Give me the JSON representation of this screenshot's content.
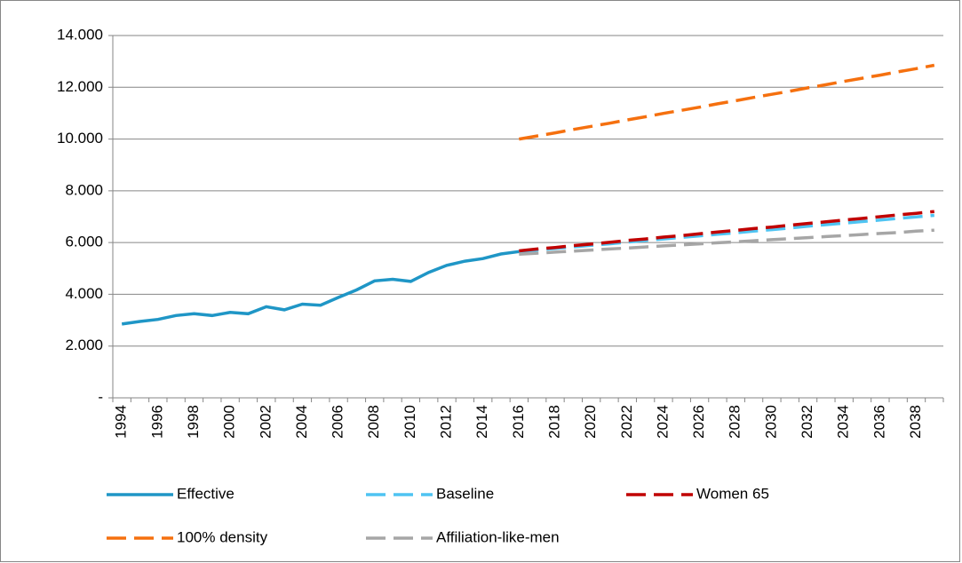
{
  "chart_data": {
    "type": "line",
    "categories": [
      "1994",
      null,
      "1996",
      null,
      "1998",
      null,
      "2000",
      null,
      "2002",
      null,
      "2004",
      null,
      "2006",
      null,
      "2008",
      null,
      "2010",
      null,
      "2012",
      null,
      "2014",
      null,
      "2016",
      null,
      "2018",
      null,
      "2020",
      null,
      "2022",
      null,
      "2024",
      null,
      "2026",
      null,
      "2028",
      null,
      "2030",
      null,
      "2032",
      null,
      "2034",
      null,
      "2036",
      null,
      "2038",
      null
    ],
    "series": [
      {
        "name": "Effective",
        "color": "#1f96c6",
        "dashed": false,
        "values": [
          2850,
          2950,
          3030,
          3180,
          3250,
          3180,
          3300,
          3250,
          3520,
          3400,
          3620,
          3580,
          3880,
          4170,
          4520,
          4580,
          4500,
          4850,
          5120,
          5280,
          5380,
          5560,
          5650,
          null,
          null,
          null,
          null,
          null,
          null,
          null,
          null,
          null,
          null,
          null,
          null,
          null,
          null,
          null,
          null,
          null,
          null,
          null,
          null,
          null,
          null,
          null
        ]
      },
      {
        "name": "Baseline",
        "color": "#4fc4f2",
        "dashed": true,
        "values": [
          null,
          null,
          null,
          null,
          null,
          null,
          null,
          null,
          null,
          null,
          null,
          null,
          null,
          null,
          null,
          null,
          null,
          null,
          null,
          null,
          null,
          null,
          5650,
          5710,
          5770,
          5830,
          5890,
          5950,
          6020,
          6080,
          6140,
          6200,
          6260,
          6320,
          6380,
          6440,
          6500,
          6560,
          6630,
          6690,
          6750,
          6810,
          6870,
          6930,
          6990,
          7050
        ]
      },
      {
        "name": "Women 65",
        "color": "#c00000",
        "dashed": true,
        "values": [
          null,
          null,
          null,
          null,
          null,
          null,
          null,
          null,
          null,
          null,
          null,
          null,
          null,
          null,
          null,
          null,
          null,
          null,
          null,
          null,
          null,
          null,
          5680,
          5750,
          5810,
          5880,
          5940,
          6010,
          6080,
          6140,
          6210,
          6270,
          6340,
          6410,
          6470,
          6540,
          6600,
          6670,
          6740,
          6800,
          6870,
          6930,
          7000,
          7070,
          7130,
          7200
        ]
      },
      {
        "name": "100% density",
        "color": "#f5700f",
        "dashed": true,
        "values": [
          null,
          null,
          null,
          null,
          null,
          null,
          null,
          null,
          null,
          null,
          null,
          null,
          null,
          null,
          null,
          null,
          null,
          null,
          null,
          null,
          null,
          null,
          10000,
          10120,
          10240,
          10370,
          10490,
          10610,
          10740,
          10860,
          10990,
          11110,
          11230,
          11360,
          11480,
          11610,
          11730,
          11850,
          11980,
          12100,
          12230,
          12350,
          12470,
          12600,
          12720,
          12850
        ]
      },
      {
        "name": "Affiliation-like-men",
        "color": "#a6a6a6",
        "dashed": true,
        "values": [
          null,
          null,
          null,
          null,
          null,
          null,
          null,
          null,
          null,
          null,
          null,
          null,
          null,
          null,
          null,
          null,
          null,
          null,
          null,
          null,
          null,
          null,
          5550,
          5590,
          5630,
          5670,
          5710,
          5750,
          5790,
          5830,
          5870,
          5910,
          5950,
          5990,
          6030,
          6070,
          6110,
          6150,
          6190,
          6230,
          6270,
          6310,
          6350,
          6390,
          6440,
          6480
        ]
      }
    ],
    "ylim": [
      0,
      14000
    ],
    "yticks": [
      {
        "value": 0,
        "label": "-"
      },
      {
        "value": 2000,
        "label": "2.000"
      },
      {
        "value": 4000,
        "label": "4.000"
      },
      {
        "value": 6000,
        "label": "6.000"
      },
      {
        "value": 8000,
        "label": "8.000"
      },
      {
        "value": 10000,
        "label": "10.000"
      },
      {
        "value": 12000,
        "label": "12.000"
      },
      {
        "value": 14000,
        "label": "14.000"
      }
    ],
    "grid": true,
    "legend": "bottom"
  }
}
